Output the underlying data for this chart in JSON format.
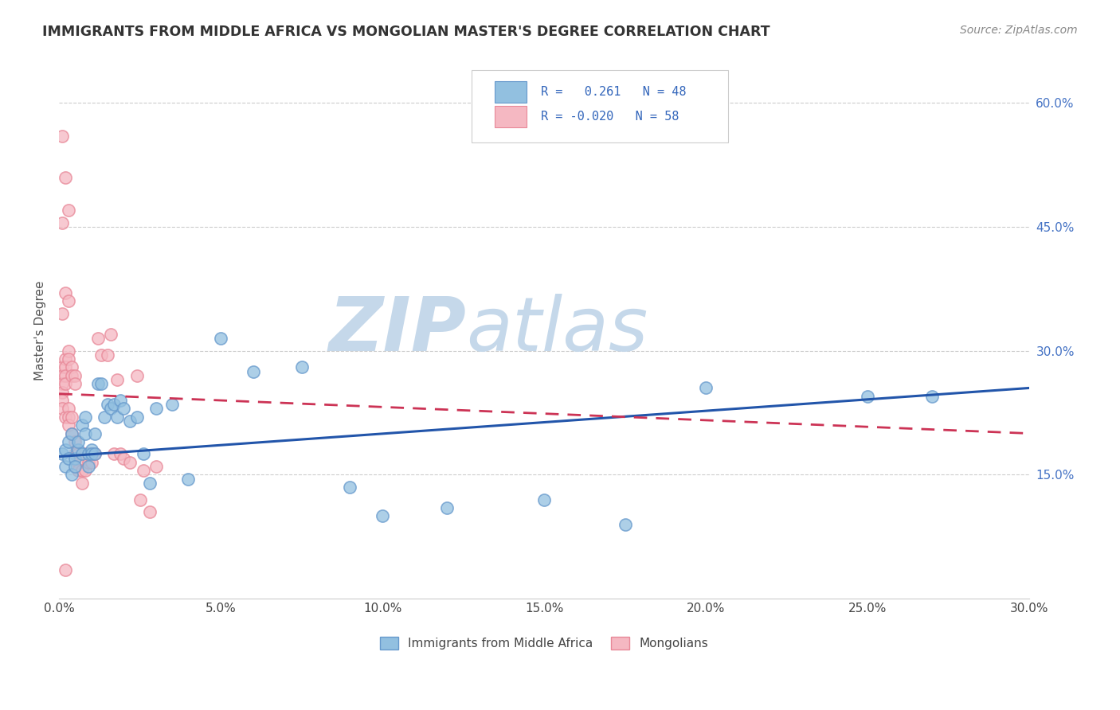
{
  "title": "IMMIGRANTS FROM MIDDLE AFRICA VS MONGOLIAN MASTER'S DEGREE CORRELATION CHART",
  "source": "Source: ZipAtlas.com",
  "xlabel_ticks": [
    "0.0%",
    "5.0%",
    "10.0%",
    "15.0%",
    "20.0%",
    "25.0%",
    "30.0%"
  ],
  "xlabel_vals": [
    0.0,
    0.05,
    0.1,
    0.15,
    0.2,
    0.25,
    0.3
  ],
  "ylabel_ticks_right": [
    "15.0%",
    "30.0%",
    "45.0%",
    "60.0%"
  ],
  "ylabel_vals": [
    0.15,
    0.3,
    0.45,
    0.6
  ],
  "ylabel_label": "Master's Degree",
  "xlim": [
    0.0,
    0.3
  ],
  "ylim": [
    0.0,
    0.65
  ],
  "blue_r": 0.261,
  "blue_n": 48,
  "pink_r": -0.02,
  "pink_n": 58,
  "blue_color": "#92C0E0",
  "pink_color": "#F5B8C2",
  "blue_edge": "#6699CC",
  "pink_edge": "#E88898",
  "trend_blue": "#2255AA",
  "trend_pink": "#CC3355",
  "watermark_zip": "ZIP",
  "watermark_atlas": "atlas",
  "watermark_color_zip": "#c5d8ea",
  "watermark_color_atlas": "#c5d8ea",
  "legend_label_blue": "Immigrants from Middle Africa",
  "legend_label_pink": "Mongolians",
  "blue_trend_x0": 0.0,
  "blue_trend_y0": 0.172,
  "blue_trend_x1": 0.3,
  "blue_trend_y1": 0.255,
  "pink_trend_x0": 0.0,
  "pink_trend_y0": 0.248,
  "pink_trend_x1": 0.3,
  "pink_trend_y1": 0.2,
  "blue_scatter_x": [
    0.001,
    0.002,
    0.002,
    0.003,
    0.003,
    0.004,
    0.004,
    0.005,
    0.005,
    0.006,
    0.006,
    0.007,
    0.007,
    0.008,
    0.008,
    0.009,
    0.009,
    0.01,
    0.01,
    0.011,
    0.011,
    0.012,
    0.013,
    0.014,
    0.015,
    0.016,
    0.017,
    0.018,
    0.019,
    0.02,
    0.022,
    0.024,
    0.026,
    0.028,
    0.03,
    0.035,
    0.04,
    0.05,
    0.06,
    0.075,
    0.09,
    0.1,
    0.12,
    0.15,
    0.175,
    0.2,
    0.25,
    0.27
  ],
  "blue_scatter_y": [
    0.175,
    0.18,
    0.16,
    0.19,
    0.17,
    0.15,
    0.2,
    0.17,
    0.16,
    0.18,
    0.19,
    0.21,
    0.175,
    0.2,
    0.22,
    0.175,
    0.16,
    0.18,
    0.175,
    0.2,
    0.175,
    0.26,
    0.26,
    0.22,
    0.235,
    0.23,
    0.235,
    0.22,
    0.24,
    0.23,
    0.215,
    0.22,
    0.175,
    0.14,
    0.23,
    0.235,
    0.145,
    0.315,
    0.275,
    0.28,
    0.135,
    0.1,
    0.11,
    0.12,
    0.09,
    0.255,
    0.245,
    0.245
  ],
  "pink_scatter_x": [
    0.001,
    0.001,
    0.001,
    0.001,
    0.001,
    0.001,
    0.002,
    0.002,
    0.002,
    0.002,
    0.002,
    0.003,
    0.003,
    0.003,
    0.003,
    0.003,
    0.004,
    0.004,
    0.004,
    0.004,
    0.005,
    0.005,
    0.005,
    0.005,
    0.006,
    0.006,
    0.006,
    0.007,
    0.007,
    0.008,
    0.008,
    0.009,
    0.009,
    0.01,
    0.01,
    0.011,
    0.012,
    0.013,
    0.015,
    0.016,
    0.017,
    0.018,
    0.019,
    0.02,
    0.022,
    0.024,
    0.025,
    0.026,
    0.028,
    0.03,
    0.001,
    0.002,
    0.003,
    0.001,
    0.002,
    0.003,
    0.001,
    0.002
  ],
  "pink_scatter_y": [
    0.28,
    0.27,
    0.26,
    0.25,
    0.24,
    0.23,
    0.29,
    0.28,
    0.27,
    0.26,
    0.22,
    0.3,
    0.29,
    0.23,
    0.22,
    0.21,
    0.28,
    0.27,
    0.22,
    0.2,
    0.27,
    0.26,
    0.19,
    0.175,
    0.175,
    0.165,
    0.155,
    0.155,
    0.14,
    0.175,
    0.155,
    0.175,
    0.165,
    0.175,
    0.165,
    0.175,
    0.315,
    0.295,
    0.295,
    0.32,
    0.175,
    0.265,
    0.175,
    0.17,
    0.165,
    0.27,
    0.12,
    0.155,
    0.105,
    0.16,
    0.56,
    0.51,
    0.47,
    0.455,
    0.37,
    0.36,
    0.345,
    0.035
  ]
}
